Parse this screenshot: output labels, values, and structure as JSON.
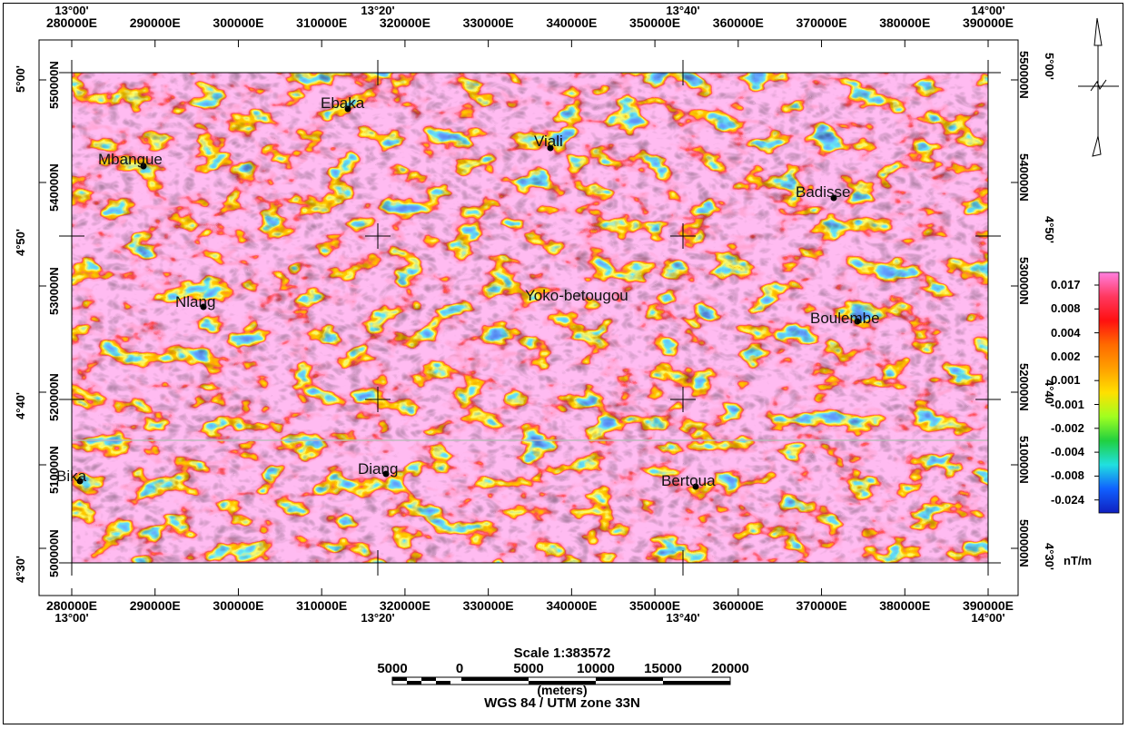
{
  "map": {
    "utm_labels_top": [
      "280000E",
      "290000E",
      "300000E",
      "310000E",
      "320000E",
      "330000E",
      "340000E",
      "350000E",
      "360000E",
      "370000E",
      "380000E",
      "390000E"
    ],
    "utm_labels_bottom": [
      "280000E",
      "290000E",
      "300000E",
      "310000E",
      "320000E",
      "330000E",
      "340000E",
      "350000E",
      "360000E",
      "370000E",
      "380000E",
      "390000E"
    ],
    "geo_labels_top": [
      "13°00'",
      "13°20'",
      "13°40'",
      "14°00'"
    ],
    "geo_labels_bottom": [
      "13°00'",
      "13°20'",
      "13°40'",
      "14°00'"
    ],
    "utm_labels_left": [
      "550000N",
      "540000N",
      "530000N",
      "520000N",
      "510000N",
      "500000N"
    ],
    "utm_labels_right": [
      "550000N",
      "540000N",
      "530000N",
      "520000N",
      "510000N",
      "500000N"
    ],
    "geo_labels_left": [
      "5°00'",
      "4°50'",
      "4°40'",
      "4°30'"
    ],
    "geo_labels_right": [
      "5°00'",
      "4°50'",
      "4°40'",
      "4°30'"
    ],
    "places": [
      {
        "name": "Ebaka"
      },
      {
        "name": "Mbangue"
      },
      {
        "name": "Viali"
      },
      {
        "name": "Badisse"
      },
      {
        "name": "Nlang"
      },
      {
        "name": "Yoko-betougou"
      },
      {
        "name": "Boulembe"
      },
      {
        "name": "Bika"
      },
      {
        "name": "Diang"
      },
      {
        "name": "Bertoua"
      }
    ]
  },
  "colorbar": {
    "labels": [
      "0.017",
      "0.008",
      "0.004",
      "0.002",
      "0.001",
      "-0.001",
      "-0.002",
      "-0.004",
      "-0.008",
      "-0.024"
    ],
    "unit": "nT/m",
    "colors": [
      "#ff80e0",
      "#ff3860",
      "#ff1010",
      "#ff6a00",
      "#ffa000",
      "#ffe000",
      "#a0ff20",
      "#20d040",
      "#20e0e0",
      "#1060ff",
      "#1020c0"
    ]
  },
  "scalebar": {
    "title": "Scale 1:383572",
    "ticks": [
      "5000",
      "0",
      "5000",
      "10000",
      "15000",
      "20000"
    ],
    "unit": "(meters)",
    "projection": "WGS 84 / UTM zone 33N"
  }
}
